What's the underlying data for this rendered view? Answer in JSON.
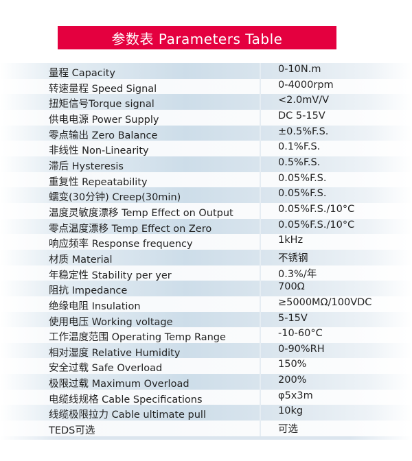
{
  "title": "参数表  Parameters Table",
  "rows": [
    {
      "label": "量程 Capacity",
      "value": "0-10N.m"
    },
    {
      "label": "转速量程 Speed Signal",
      "value": "0-4000rpm"
    },
    {
      "label": "扭矩信号Torque signal",
      "value": "<2.0mV/V"
    },
    {
      "label": "供电电源 Power Supply",
      "value": "DC 5-15V"
    },
    {
      "label": "零点输出 Zero Balance",
      "value": "±0.5%F.S."
    },
    {
      "label": "非线性 Non-Linearity",
      "value": "0.1%F.S."
    },
    {
      "label": "滞后 Hysteresis",
      "value": "0.5%F.S."
    },
    {
      "label": "重复性 Repeatability",
      "value": "0.05%F.S."
    },
    {
      "label": "蠕变(30分钟) Creep(30min)",
      "value": "0.05%F.S."
    },
    {
      "label": "温度灵敏度漂移 Temp Effect on Output",
      "value": "0.05%F.S./10°C"
    },
    {
      "label": "零点温度漂移 Temp Effect on Zero",
      "value": "0.05%F.S./10°C"
    },
    {
      "label": "响应频率 Response frequency",
      "value": "1kHz"
    },
    {
      "label": "材质 Material",
      "value": "不锈钢"
    },
    {
      "label": "年稳定性 Stability per yer",
      "value": "0.3%/年"
    },
    {
      "label": "阻抗  Impedance",
      "value": "700Ω"
    },
    {
      "label": "绝缘电阻 Insulation",
      "value": "≥5000MΩ/100VDC"
    },
    {
      "label": "使用电压 Working voltage",
      "value": "5-15V"
    },
    {
      "label": "工作温度范围 Operating Temp Range",
      "value": "-10-60°C"
    },
    {
      "label": "相对湿度 Relative Humidity",
      "value": "0-90%RH"
    },
    {
      "label": "安全过载 Safe Overload",
      "value": "150%"
    },
    {
      "label": "极限过载 Maximum Overload",
      "value": "200%"
    },
    {
      "label": "电缆线规格 Cable Specifications",
      "value": "φ5x3m"
    },
    {
      "label": "线缆极限拉力 Cable ultimate pull",
      "value": "10kg"
    },
    {
      "label": "TEDS可选",
      "value": "可选"
    }
  ],
  "colors": {
    "banner": "#e4003f",
    "row_shade": "#cddde9"
  }
}
